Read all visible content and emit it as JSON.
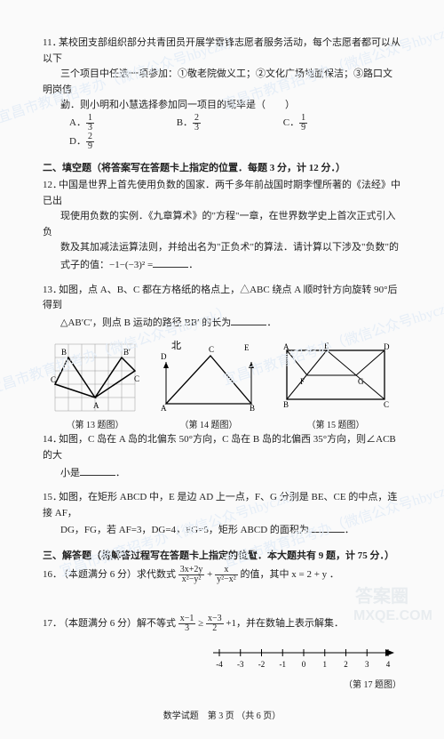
{
  "q11": {
    "text1": "某校团支部组织部分共青团员开展学雷锋志愿者服务活动，每个志愿者都可以从以下",
    "text2": "三个项目中任选一项参加：①敬老院做义工；②文化广场地面保洁；③路口文明岗值",
    "text3": "勤．则小明和小慧选择参加同一项目的概率是（　　）",
    "A_n": "1",
    "A_d": "3",
    "B_n": "2",
    "B_d": "3",
    "C_n": "1",
    "C_d": "9",
    "D_n": "2",
    "D_d": "9"
  },
  "section2": "二、填空题（将答案写在答题卡上指定的位置．每题 3 分，计 12 分．）",
  "q12": {
    "l1": "中国是世界上首先使用负数的国家．两千多年前战国时期李悝所著的《法经》中已出",
    "l2": "现使用负数的实例．《九章算术》的\"方程\"一章，在世界数学史上首次正式引入负",
    "l3": "数及其加减法运算法则，并给出名为\"正负术\"的算法．请计算以下涉及\"负数\"的",
    "l4": "式子的值：−1−(−3)² =",
    "end": "．"
  },
  "q13": {
    "l1": "如图，点 A、B、C 都在方格纸的格点上，△ABC 绕点 A 顺时针方向旋转 90°后得到",
    "l2": "△AB′C′，则点 B 运动的路径 BB′ 的长为",
    "end": "．"
  },
  "cap13": "（第 13 题图）",
  "cap14": "（第 14 题图）",
  "cap15": "（第 15 题图）",
  "q14": {
    "l1": "如图，C 岛在 A 岛的北偏东 50°方向，C 岛在 B 岛的北偏西 35°方向，则∠ACB 的大",
    "l2": "小是",
    "end": "．"
  },
  "q15": {
    "l1": "如图，在矩形 ABCD 中，E 是边 AD 上一点，F、G 分别是 BE、CE 的中点，连接 AF，",
    "l2": "DG，FG，若 AF=3，DG=4，FG=5，矩形 ABCD 的面积为",
    "end": "．"
  },
  "section3": "三、解答题（将解答过程写在答题卡上指定的位置．本大题共有 9 题，计 75 分．）",
  "q16": {
    "pre": "（本题满分 6 分）求代数式 ",
    "fr1n": "3x+2y",
    "fr1d": "x²−y²",
    "plus": " + ",
    "fr2n": "x",
    "fr2d": "y²−x²",
    "post": " 的值，其中 x = 2 + y ．"
  },
  "q17": {
    "pre": "（本题满分 6 分）解不等式 ",
    "fr1n": "x−1",
    "fr1d": "3",
    "ge": " ≥ ",
    "fr2n": "x−3",
    "fr2d": "2",
    "post": " +1，并在数轴上表示解集．"
  },
  "numline_labels": [
    "-4",
    "-3",
    "-2",
    "-1",
    "0",
    "1",
    "2",
    "3",
    "4"
  ],
  "cap17": "（第 17 题图）",
  "footer": "数学试题　第 3 页 （共 6 页）",
  "wm": "宜昌市教育招考办（微信公众号hbyczk）",
  "logo_top": "答案圈",
  "logo_bot": "MXQE.COM",
  "fig13": {
    "grid_color": "#999",
    "pointA": "A",
    "pointB": "B",
    "pointC": "C",
    "pointBp": "B′",
    "pointCp": "C′"
  },
  "fig14": {
    "north": "北",
    "A": "A",
    "B": "B",
    "C": "C",
    "D": "D",
    "E": "E"
  },
  "fig15": {
    "A": "A",
    "B": "B",
    "C": "C",
    "D": "D",
    "E": "E",
    "F": "F",
    "G": "G"
  }
}
